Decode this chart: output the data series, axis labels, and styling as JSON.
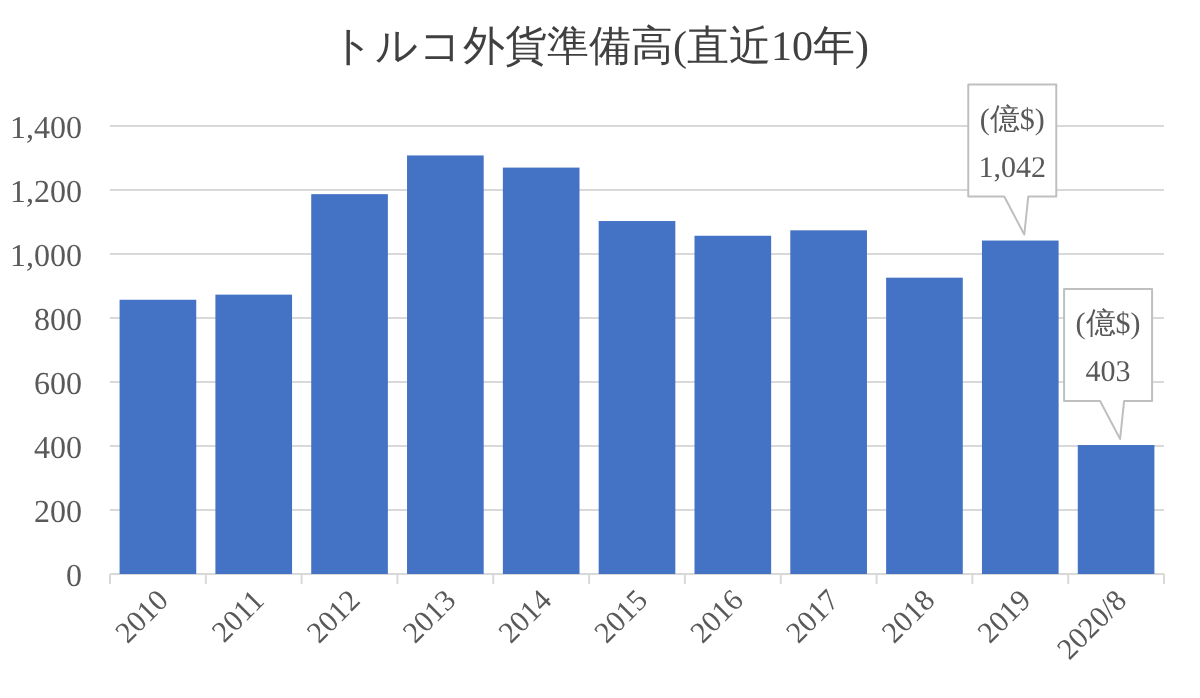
{
  "chart_data": {
    "type": "bar",
    "title": "トルコ外貨準備高(直近10年)",
    "categories": [
      "2010",
      "2011",
      "2012",
      "2013",
      "2014",
      "2015",
      "2016",
      "2017",
      "2018",
      "2019",
      "2020/8"
    ],
    "values": [
      857,
      873,
      1187,
      1308,
      1270,
      1103,
      1057,
      1074,
      926,
      1042,
      403
    ],
    "color": "#4472c4",
    "value_labels": [
      null,
      null,
      null,
      null,
      null,
      null,
      null,
      null,
      null,
      "1,042",
      "403"
    ],
    "annotations": [
      "(億$)",
      "(億$)"
    ],
    "ylim": [
      0,
      1400
    ],
    "yticks": [
      0,
      200,
      400,
      600,
      800,
      {
        "value": 1000,
        "label": "1,000"
      },
      {
        "value": 1200,
        "label": "1,200"
      },
      {
        "value": 1400,
        "label": "1,400"
      }
    ],
    "grid": "y"
  }
}
